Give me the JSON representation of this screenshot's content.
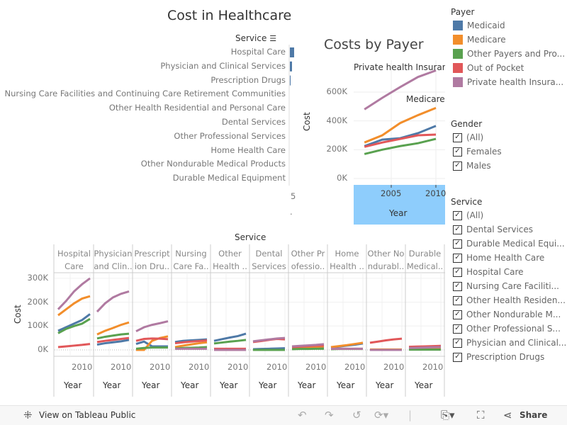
{
  "dashboard": {
    "title_main": "Cost in Healthcare",
    "title_payer": "Costs by Payer",
    "colors": {
      "Medicaid": "#4e79a7",
      "Medicare": "#f28e2b",
      "Other Payers and Programs": "#59a14f",
      "Out of Pocket": "#e15759",
      "Private health Insurance": "#b07aa1",
      "highlight": "#8ecdfc"
    }
  },
  "bar_chart": {
    "header": "Service",
    "sort_icon": "sort-descending-icon",
    "rows": [
      "Hospital Care",
      "Physician and Clinical Services",
      "Prescription Drugs",
      "Nursing Care Facilities and Continuing Care Retirement Communities",
      "Other Health Residential and Personal Care",
      "Dental Services",
      "Other Professional Services",
      "Home Health Care",
      "Other Nondurable Medical Products",
      "Durable Medical Equipment"
    ],
    "bar_fraction": [
      1.0,
      0.5,
      0.17,
      0,
      0,
      0,
      0,
      0,
      0,
      0
    ],
    "axis_tick": "5",
    "axis_dot": "."
  },
  "chart_data": [
    {
      "type": "line",
      "title": "Costs by Payer",
      "xlabel": "Year",
      "ylabel": "Cost",
      "x": [
        2002,
        2004,
        2006,
        2008,
        2010
      ],
      "x_ticks": [
        "2005",
        "2010"
      ],
      "y_ticks": [
        "0K",
        "200K",
        "400K",
        "600K"
      ],
      "ylim": [
        0,
        750000
      ],
      "annotations": [
        "Private health Insuranc",
        "Medicare"
      ],
      "series": [
        {
          "name": "Medicaid",
          "values": [
            225000,
            270000,
            280000,
            315000,
            365000
          ]
        },
        {
          "name": "Medicare",
          "values": [
            250000,
            300000,
            385000,
            440000,
            490000
          ]
        },
        {
          "name": "Other Payers and Programs",
          "values": [
            170000,
            200000,
            225000,
            245000,
            275000
          ]
        },
        {
          "name": "Out of Pocket",
          "values": [
            220000,
            250000,
            275000,
            300000,
            305000
          ]
        },
        {
          "name": "Private health Insurance",
          "values": [
            480000,
            560000,
            635000,
            705000,
            750000
          ]
        }
      ]
    },
    {
      "type": "line",
      "title": "",
      "column_header": "Service",
      "xlabel": "Year",
      "ylabel": "Cost",
      "x": [
        2002,
        2004,
        2006,
        2008,
        2010
      ],
      "x_tick": "2010",
      "y_ticks": [
        "0K",
        "100K",
        "200K",
        "300K"
      ],
      "ylim": [
        0,
        320000
      ],
      "series_order": [
        "Medicaid",
        "Medicare",
        "Other Payers and Programs",
        "Out of Pocket",
        "Private health Insurance"
      ],
      "panels": [
        {
          "header": [
            "Hospital",
            "Care"
          ],
          "values": [
            [
              80,
              95,
              110,
              125,
              150
            ],
            [
              145,
              170,
              195,
              215,
              225
            ],
            [
              70,
              88,
              100,
              110,
              130
            ],
            [
              12,
              15,
              18,
              21,
              25
            ],
            [
              170,
              205,
              245,
              275,
              300
            ]
          ]
        },
        {
          "header": [
            "Physician",
            "and Clin.."
          ],
          "values": [
            [
              22,
              28,
              32,
              36,
              42
            ],
            [
              65,
              80,
              92,
              105,
              115
            ],
            [
              48,
              55,
              60,
              65,
              68
            ],
            [
              33,
              38,
              42,
              46,
              50
            ],
            [
              160,
              195,
              220,
              235,
              245
            ]
          ]
        },
        {
          "header": [
            "Prescript",
            "ion Dru.."
          ],
          "values": [
            [
              25,
              35,
              15,
              15,
              15
            ],
            [
              0,
              0,
              38,
              50,
              57
            ],
            [
              5,
              8,
              10,
              10,
              10
            ],
            [
              38,
              46,
              48,
              47,
              45
            ],
            [
              78,
              95,
              105,
              112,
              120
            ]
          ]
        },
        {
          "header": [
            "Nursing",
            "Care Fa.."
          ],
          "values": [
            [
              33,
              38,
              40,
              42,
              44
            ],
            [
              12,
              18,
              23,
              28,
              32
            ],
            [
              6,
              8,
              9,
              10,
              12
            ],
            [
              28,
              32,
              35,
              37,
              40
            ],
            [
              5,
              5,
              5,
              5,
              5
            ]
          ]
        },
        {
          "header": [
            "Other",
            "Health .."
          ],
          "values": [
            [
              38,
              45,
              52,
              58,
              68
            ],
            [
              3,
              3,
              4,
              4,
              4
            ],
            [
              27,
              31,
              35,
              38,
              42
            ],
            [
              5,
              5,
              5,
              5,
              5
            ],
            [
              0,
              0,
              0,
              0,
              0
            ]
          ]
        },
        {
          "header": [
            "Dental",
            "Services"
          ],
          "values": [
            [
              3,
              4,
              5,
              6,
              7
            ],
            [
              0,
              0,
              0,
              0,
              0
            ],
            [
              0,
              0,
              0,
              0,
              0
            ],
            [
              33,
              37,
              42,
              46,
              44
            ],
            [
              36,
              40,
              44,
              48,
              50
            ]
          ]
        },
        {
          "header": [
            "Other Pr",
            "ofessio.."
          ],
          "values": [
            [
              5,
              6,
              7,
              8,
              9
            ],
            [
              8,
              9,
              11,
              13,
              15
            ],
            [
              3,
              4,
              4,
              5,
              5
            ],
            [
              12,
              14,
              16,
              18,
              19
            ],
            [
              15,
              17,
              19,
              21,
              24
            ]
          ]
        },
        {
          "header": [
            "Home",
            "Health .."
          ],
          "values": [
            [
              10,
              14,
              18,
              22,
              27
            ],
            [
              12,
              16,
              20,
              25,
              30
            ],
            [
              3,
              4,
              4,
              4,
              4
            ],
            [
              5,
              5,
              5,
              5,
              5
            ],
            [
              5,
              5,
              5,
              5,
              5
            ]
          ]
        },
        {
          "header": [
            "Other No",
            "ndurabl.."
          ],
          "values": [
            [
              1,
              1,
              1,
              1,
              1
            ],
            [
              2,
              2,
              2,
              2,
              2
            ],
            [
              0,
              0,
              0,
              0,
              0
            ],
            [
              30,
              35,
              40,
              44,
              47
            ],
            [
              0,
              0,
              0,
              0,
              0
            ]
          ]
        },
        {
          "header": [
            "Durable",
            "Medical.."
          ],
          "values": [
            [
              3,
              4,
              4,
              5,
              5
            ],
            [
              5,
              6,
              7,
              7,
              8
            ],
            [
              1,
              1,
              1,
              1,
              1
            ],
            [
              13,
              14,
              15,
              16,
              17
            ],
            [
              8,
              9,
              10,
              11,
              12
            ]
          ]
        }
      ],
      "value_unit": "K"
    }
  ],
  "legend": {
    "payer_title": "Payer",
    "payers": [
      "Medicaid",
      "Medicare",
      "Other Payers and Pro...",
      "Out of Pocket",
      "Private health Insura..."
    ],
    "gender_title": "Gender",
    "genders": [
      "(All)",
      "Females",
      "Males"
    ],
    "service_title": "Service",
    "services": [
      "(All)",
      "Dental Services",
      "Durable Medical Equi...",
      "Home Health Care",
      "Hospital Care",
      "Nursing Care Faciliti...",
      "Other Health Residen...",
      "Other Nondurable M...",
      "Other Professional S...",
      "Physician and Clinical...",
      "Prescription Drugs"
    ],
    "check": "✓"
  },
  "toolbar": {
    "view_label": "View on Tableau Public",
    "share_label": "Share"
  }
}
